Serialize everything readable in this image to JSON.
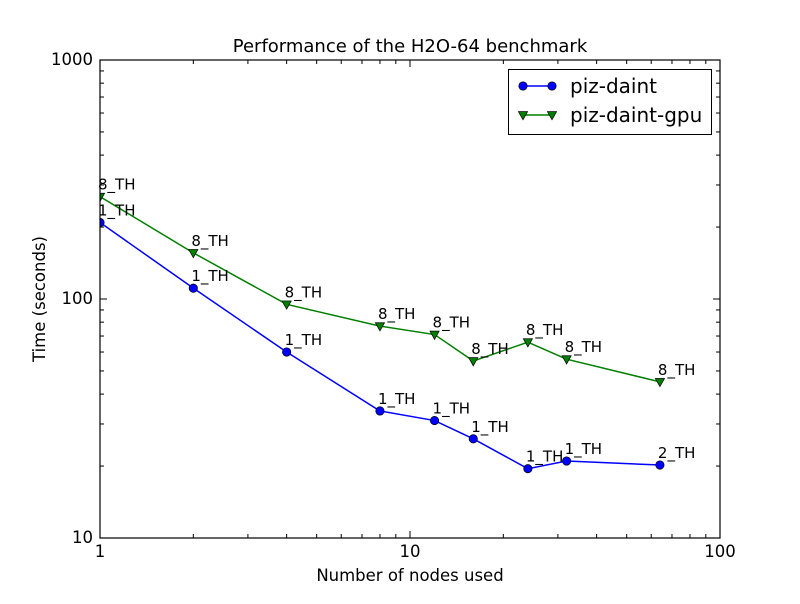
{
  "chart_data": {
    "type": "line",
    "title": "Performance of the H2O-64 benchmark",
    "xlabel": "Number of nodes used",
    "ylabel": "Time (seconds)",
    "xscale": "log",
    "yscale": "log",
    "xlim": [
      1,
      100
    ],
    "ylim": [
      10,
      1000
    ],
    "grid": false,
    "legend_position": "upper right",
    "x_major_ticks": [
      "1",
      "10",
      "100"
    ],
    "y_major_ticks": [
      "10",
      "100",
      "1000"
    ],
    "x": [
      1,
      2,
      4,
      8,
      12,
      16,
      24,
      32,
      64
    ],
    "series": [
      {
        "name": "piz-daint",
        "color": "#0000ff",
        "marker": "circle",
        "values": [
          209,
          111,
          60,
          34,
          31,
          26,
          19.5,
          21,
          20.2
        ],
        "point_labels": [
          "1_TH",
          "1_TH",
          "1_TH",
          "1_TH",
          "1_TH",
          "1_TH",
          "1_TH",
          "1_TH",
          "2_TH"
        ]
      },
      {
        "name": "piz-daint-gpu",
        "color": "#008000",
        "marker": "triangle-down",
        "values": [
          268,
          156,
          95,
          77,
          71,
          55,
          66,
          56,
          45
        ],
        "point_labels": [
          "8_TH",
          "8_TH",
          "8_TH",
          "8_TH",
          "8_TH",
          "8_TH",
          "8_TH",
          "8_TH",
          "8_TH"
        ]
      }
    ],
    "colors": {
      "background": "#ffffff",
      "axis": "#000000",
      "text": "#000000"
    }
  }
}
